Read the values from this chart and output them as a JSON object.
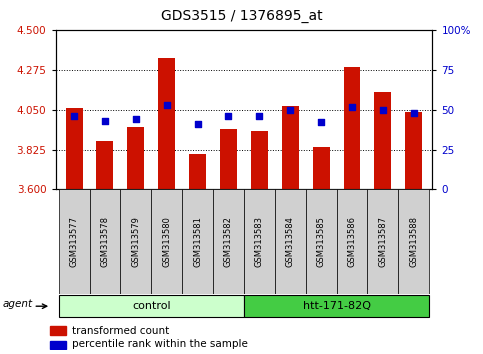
{
  "title": "GDS3515 / 1376895_at",
  "samples": [
    "GSM313577",
    "GSM313578",
    "GSM313579",
    "GSM313580",
    "GSM313581",
    "GSM313582",
    "GSM313583",
    "GSM313584",
    "GSM313585",
    "GSM313586",
    "GSM313587",
    "GSM313588"
  ],
  "transformed_counts": [
    4.06,
    3.875,
    3.95,
    4.34,
    3.8,
    3.94,
    3.93,
    4.07,
    3.84,
    4.29,
    4.15,
    4.04
  ],
  "percentile_ranks": [
    46,
    43,
    44,
    53,
    41,
    46,
    46,
    50,
    42,
    52,
    50,
    48
  ],
  "groups": [
    "control",
    "control",
    "control",
    "control",
    "control",
    "control",
    "htt-171-82Q",
    "htt-171-82Q",
    "htt-171-82Q",
    "htt-171-82Q",
    "htt-171-82Q",
    "htt-171-82Q"
  ],
  "ylim_left": [
    3.6,
    4.5
  ],
  "ylim_right": [
    0,
    100
  ],
  "yticks_left": [
    3.6,
    3.825,
    4.05,
    4.275,
    4.5
  ],
  "yticks_right": [
    0,
    25,
    50,
    75,
    100
  ],
  "bar_color": "#cc1100",
  "scatter_color": "#0000cc",
  "control_color": "#ccffcc",
  "htt_color": "#44cc44",
  "sample_box_color": "#d0d0d0",
  "bar_width": 0.55,
  "legend_bar": "transformed count",
  "legend_scatter": "percentile rank within the sample",
  "fig_width": 4.83,
  "fig_height": 3.54,
  "dpi": 100
}
